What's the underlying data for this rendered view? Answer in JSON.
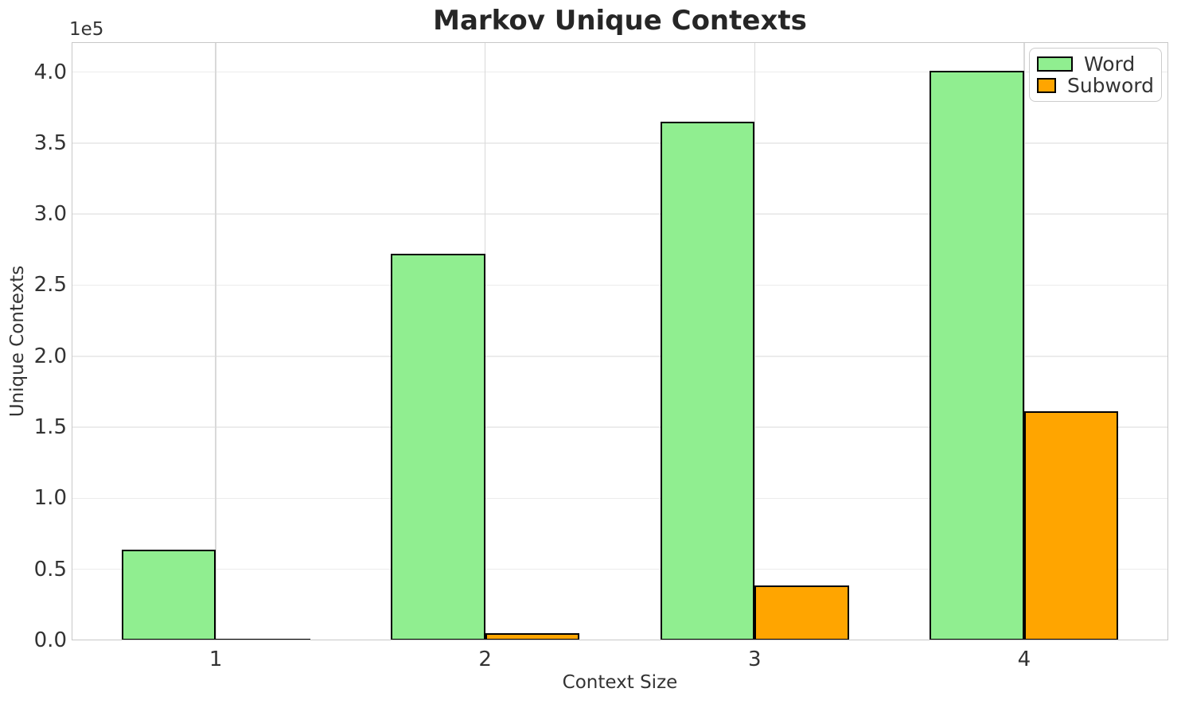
{
  "chart_data": {
    "type": "bar",
    "title": "Markov Unique Contexts",
    "xlabel": "Context Size",
    "ylabel": "Unique Contexts",
    "y_offset_label": "1e5",
    "categories": [
      1,
      2,
      3,
      4
    ],
    "series": [
      {
        "name": "Word",
        "color": "#90EE90",
        "values": [
          64000,
          272000,
          365000,
          401000
        ]
      },
      {
        "name": "Subword",
        "color": "#FFA500",
        "values": [
          350,
          4800,
          38500,
          161000
        ]
      }
    ],
    "bar_edge_color": "#000000",
    "bar_width": 0.35,
    "xlim": [
      0.465,
      4.535
    ],
    "ylim": [
      0,
      421000
    ],
    "y_ticks": [
      0.0,
      0.5,
      1.0,
      1.5,
      2.0,
      2.5,
      3.0,
      3.5,
      4.0
    ],
    "y_tick_scale": 100000,
    "grid": true,
    "legend_position": "upper right"
  }
}
